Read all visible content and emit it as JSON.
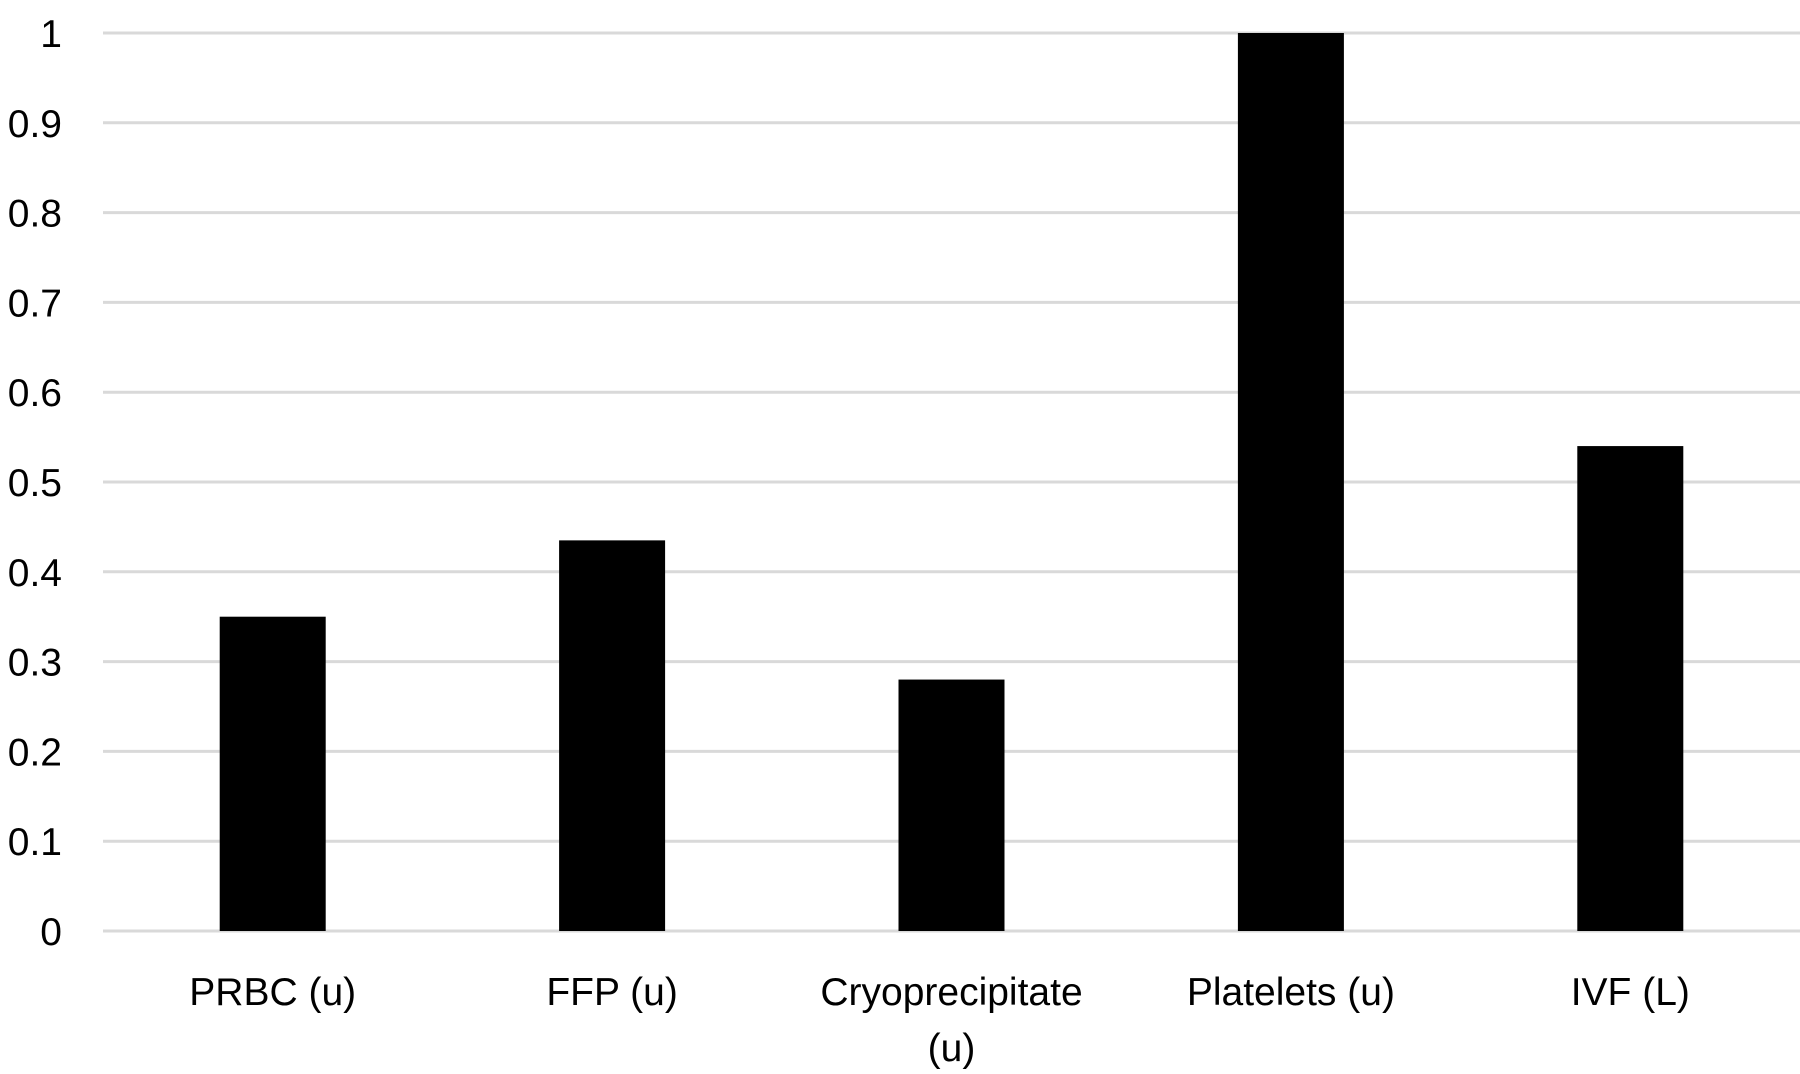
{
  "chart_data": {
    "type": "bar",
    "categories": [
      [
        "PRBC (u)"
      ],
      [
        "FFP (u)"
      ],
      [
        "Cryoprecipitate",
        "(u)"
      ],
      [
        "Platelets (u)"
      ],
      [
        "IVF (L)"
      ]
    ],
    "values": [
      0.35,
      0.435,
      0.28,
      1.0,
      0.54
    ],
    "ylim": [
      0,
      1
    ],
    "yticks": [
      "0",
      "0.1",
      "0.2",
      "0.3",
      "0.4",
      "0.5",
      "0.6",
      "0.7",
      "0.8",
      "0.9",
      "1"
    ],
    "title": "",
    "xlabel": "",
    "ylabel": "",
    "grid": true,
    "legend": "none",
    "colors": {
      "bar": "#000000",
      "grid": "#d9d9d9",
      "text": "#000000"
    }
  }
}
